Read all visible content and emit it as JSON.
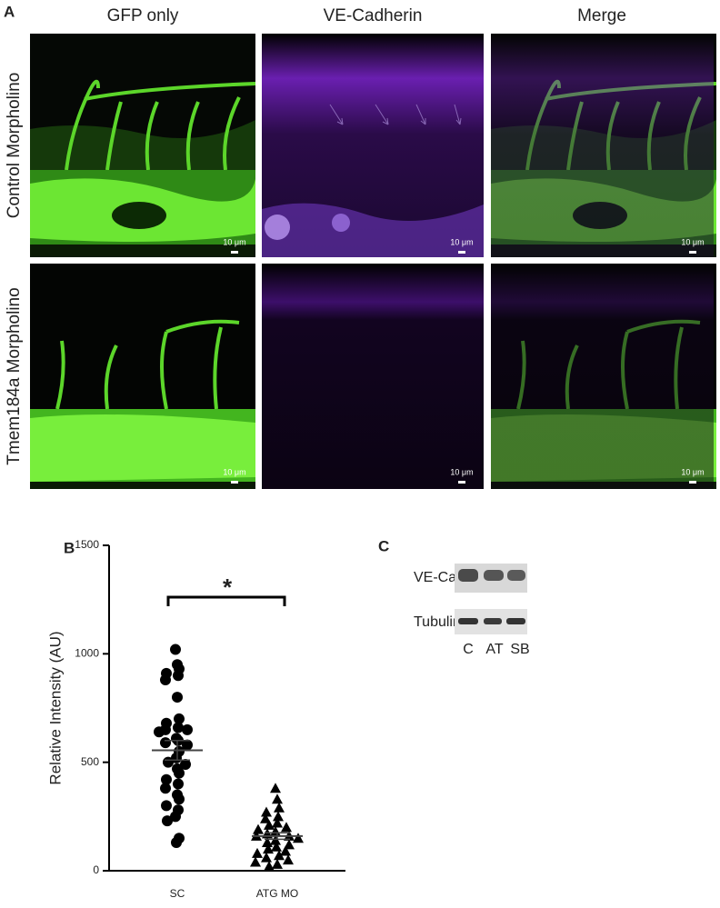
{
  "panel_labels": [
    "A",
    "B",
    "C"
  ],
  "panel_a": {
    "columns": [
      "GFP only",
      "VE-Cadherin",
      "Merge"
    ],
    "rows": [
      "Control Morpholino",
      "Tmem184a Morpholino"
    ],
    "scale_bars": [
      "10 μm",
      "10 μm",
      "10 μm",
      "10 μm",
      "10 μm",
      "10 μm"
    ]
  },
  "chart_data": {
    "type": "dot",
    "y_label": "Relative Intensity (AU)",
    "categories": [
      "SC",
      "ATG MO"
    ],
    "groups": [
      {
        "marker": "circle",
        "color": "#000000",
        "mean": 555,
        "sem": 45,
        "values": [
          1020,
          950,
          930,
          910,
          900,
          880,
          800,
          700,
          680,
          660,
          650,
          650,
          640,
          610,
          600,
          590,
          580,
          550,
          520,
          500,
          490,
          470,
          450,
          420,
          400,
          380,
          350,
          330,
          300,
          280,
          250,
          230,
          150,
          130
        ]
      },
      {
        "marker": "triangle",
        "color": "#000000",
        "mean": 160,
        "sem": 15,
        "values": [
          380,
          330,
          290,
          270,
          250,
          240,
          220,
          210,
          200,
          190,
          180,
          170,
          160,
          160,
          150,
          140,
          130,
          120,
          110,
          100,
          90,
          80,
          70,
          60,
          50,
          40,
          30,
          20
        ]
      }
    ],
    "significance": "*",
    "ylim": [
      0,
      1500
    ],
    "yticks": [
      0,
      500,
      1000,
      1500
    ]
  },
  "panel_c": {
    "blots": [
      "VE-Cad",
      "Tubulin"
    ],
    "lanes": [
      "C",
      "AT",
      "SB"
    ]
  }
}
